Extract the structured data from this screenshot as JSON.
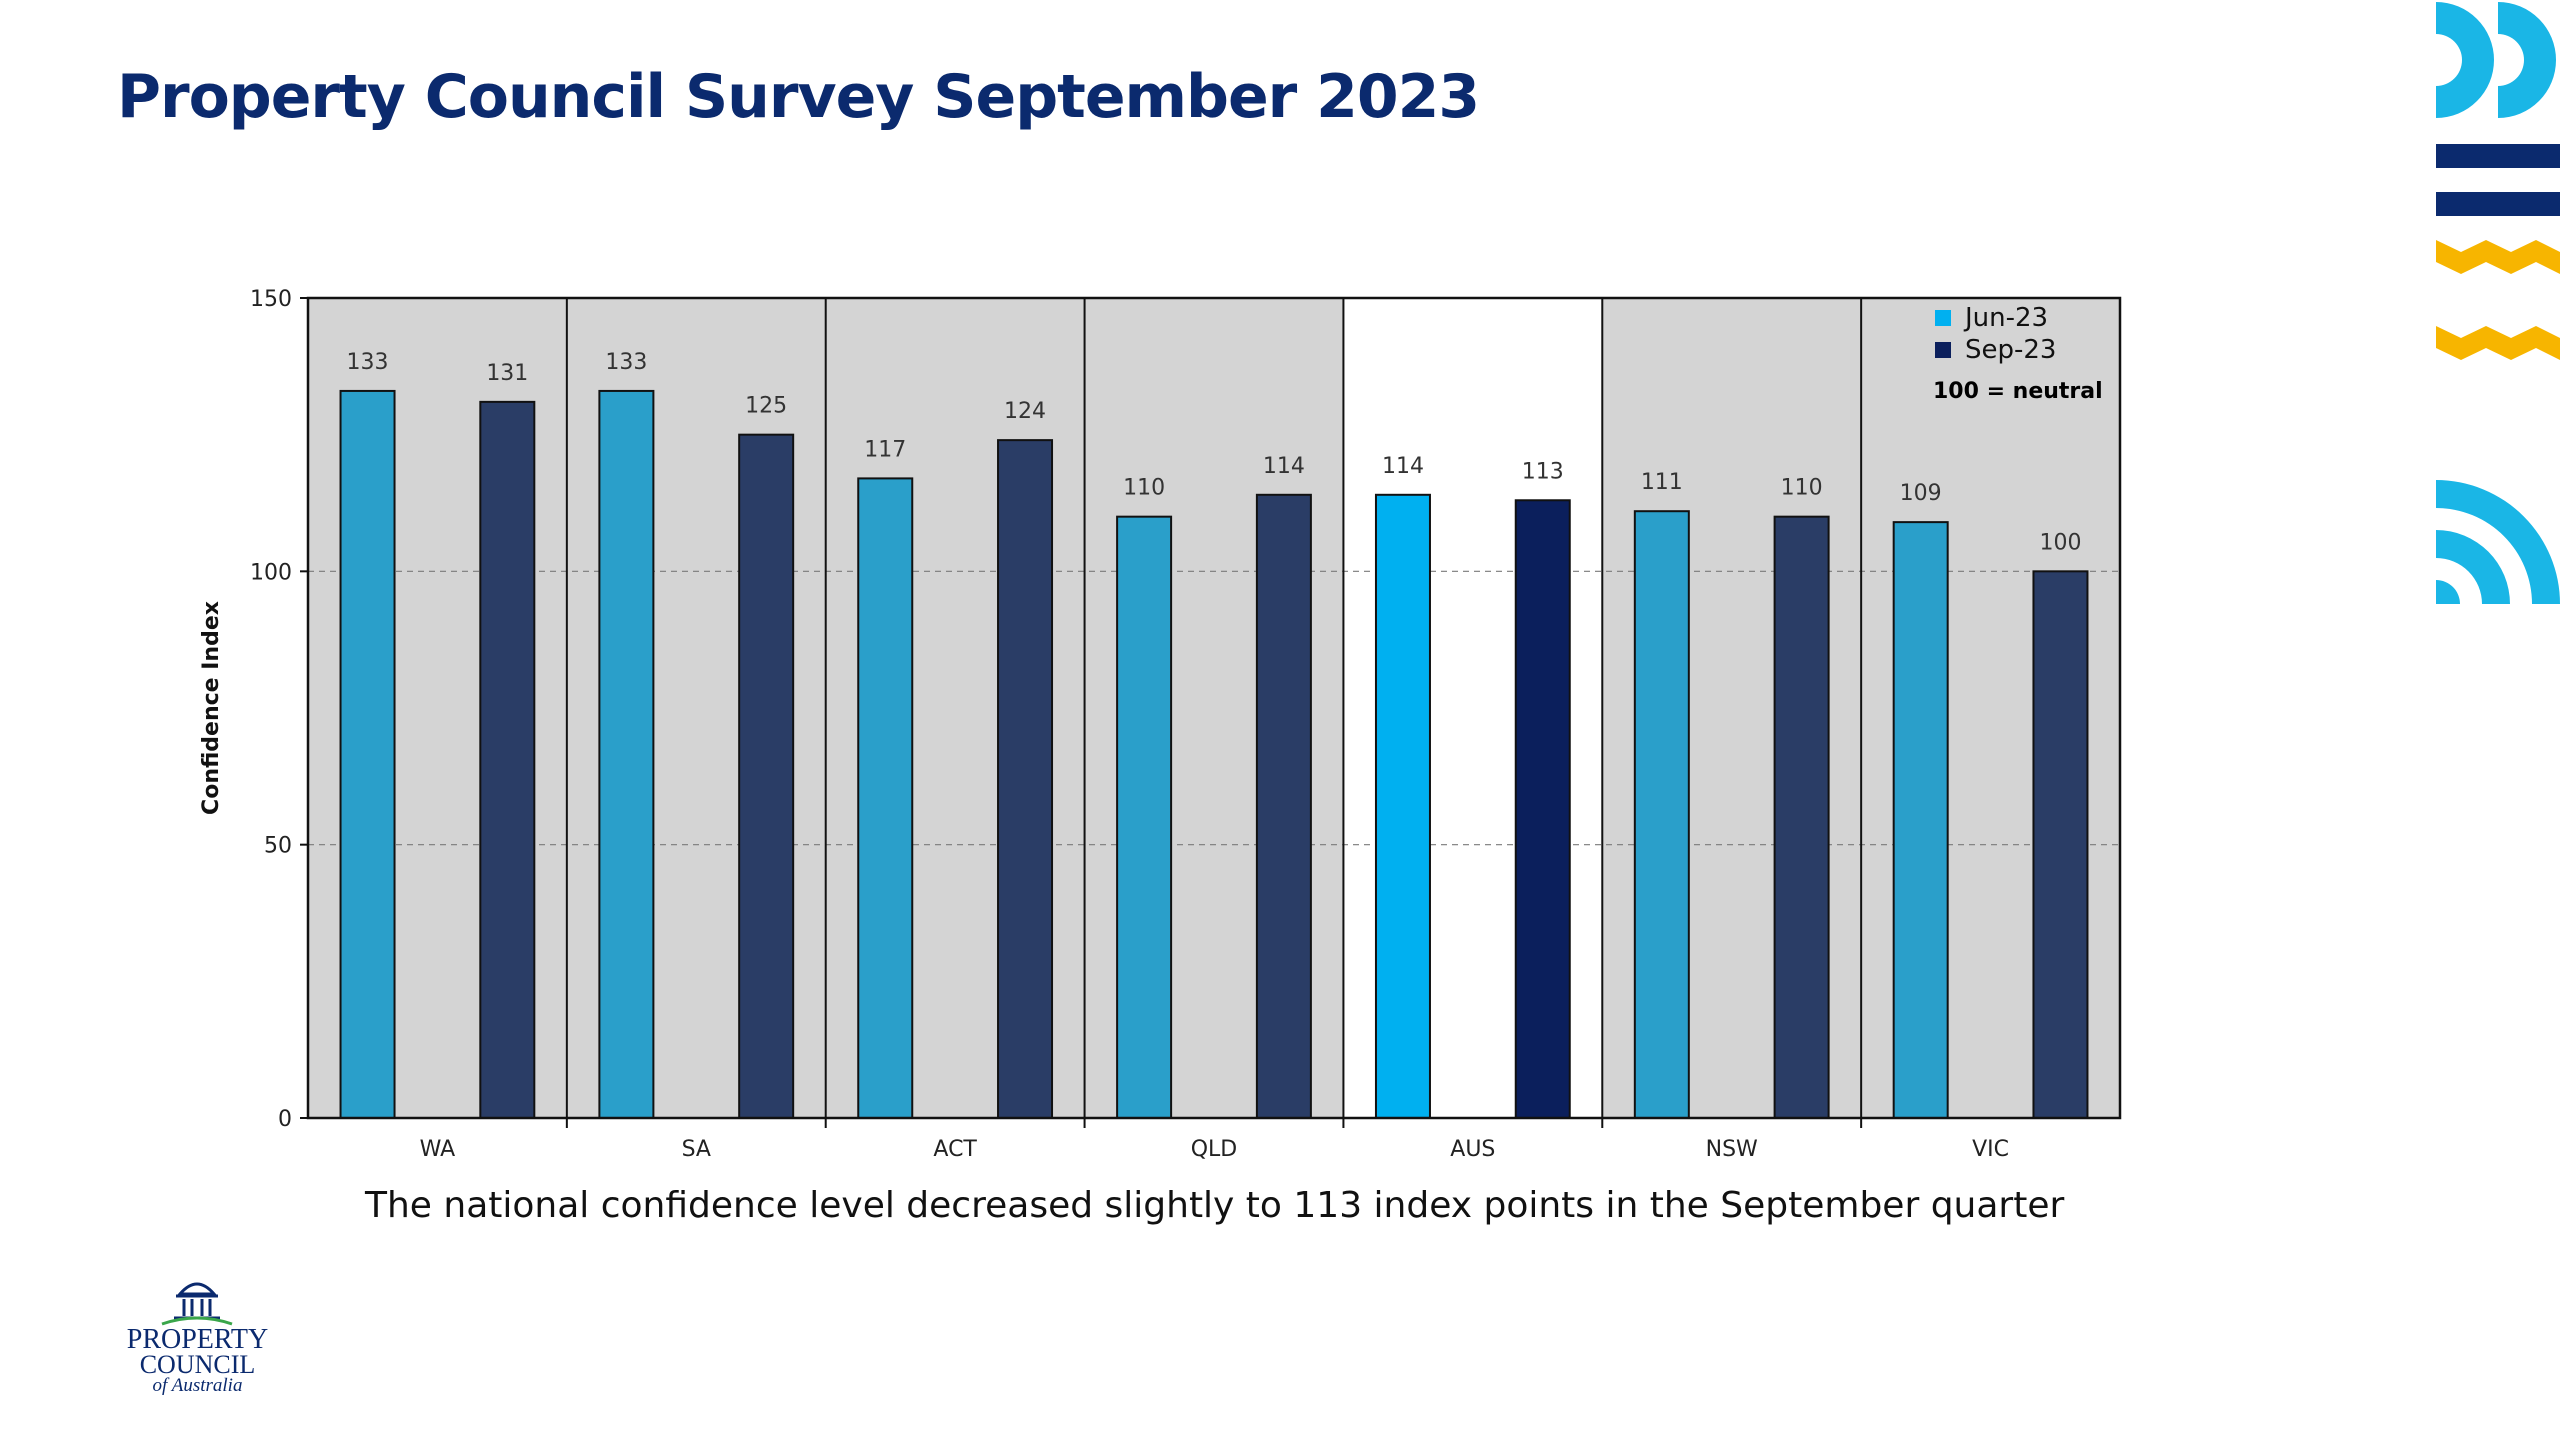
{
  "slide": {
    "title": "Property Council Survey September 2023",
    "caption": "The national confidence level decreased slightly to 113 index points in the September quarter"
  },
  "logo": {
    "line1": "PROPERTY",
    "line2": "COUNCIL",
    "line3": "of Australia"
  },
  "colors": {
    "title": "#0b2a6e",
    "jun23": "#2a9fca",
    "sep23": "#2a3d66",
    "jun23_highlight": "#00b0f0",
    "sep23_highlight": "#0b1f5c",
    "panel_bg": "#d4d4d4",
    "deco_cyan": "#1ab6e6",
    "deco_navy": "#0b2a6e",
    "deco_yellow": "#f7b500"
  },
  "chart_data": {
    "type": "bar",
    "title": "",
    "ylabel": "Confidence Index",
    "xlabel": "",
    "ylim": [
      0,
      150
    ],
    "yticks": [
      0,
      50,
      100,
      150
    ],
    "grid": "dashed horizontal at 50 and 100",
    "categories": [
      "WA",
      "SA",
      "ACT",
      "QLD",
      "AUS",
      "NSW",
      "VIC"
    ],
    "highlight_category": "AUS",
    "series": [
      {
        "name": "Jun-23",
        "values": [
          133,
          133,
          117,
          110,
          114,
          111,
          109
        ]
      },
      {
        "name": "Sep-23",
        "values": [
          131,
          125,
          124,
          114,
          113,
          110,
          100
        ]
      }
    ],
    "legend": {
      "position": "top-right",
      "note": "100 = neutral"
    }
  }
}
